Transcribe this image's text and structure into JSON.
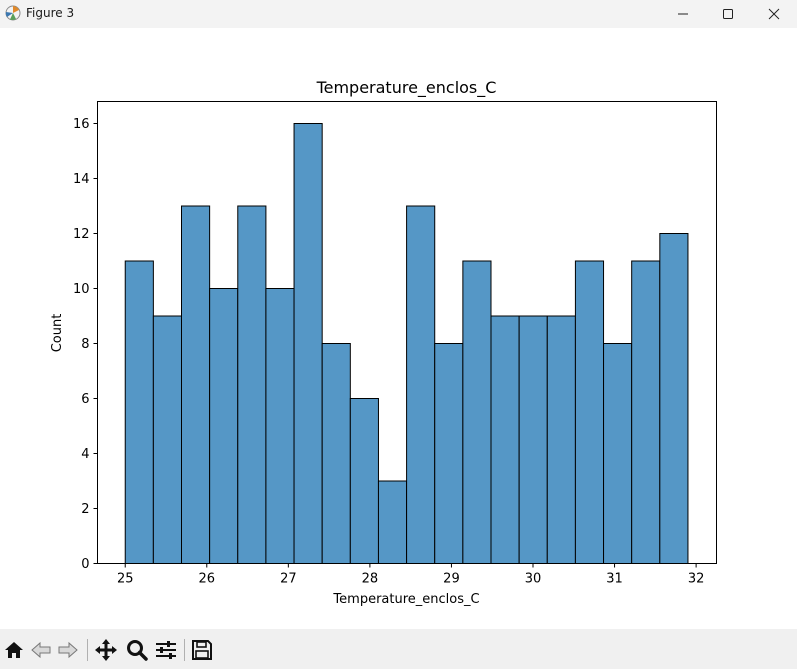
{
  "window": {
    "title": "Figure 3"
  },
  "icons": {
    "app": "matplotlib-figure-icon",
    "minimize": "minimize-icon",
    "maximize": "maximize-icon",
    "close": "close-icon",
    "home": "home-icon",
    "back": "back-arrow-icon",
    "forward": "forward-arrow-icon",
    "pan": "pan-move-icon",
    "zoom": "zoom-magnifier-icon",
    "configure": "configure-subplots-icon",
    "save": "save-floppy-icon"
  },
  "chart_data": {
    "type": "bar",
    "title": "Temperature_enclos_C",
    "xlabel": "Temperature_enclos_C",
    "ylabel": "Count",
    "bin_start": 25.0,
    "bin_width": 0.345,
    "values": [
      11,
      9,
      13,
      10,
      13,
      10,
      16,
      8,
      6,
      3,
      13,
      8,
      11,
      9,
      9,
      9,
      11,
      8,
      11,
      12
    ],
    "xlim": [
      24.66,
      32.25
    ],
    "ylim": [
      0,
      16.8
    ],
    "xticks": [
      "25",
      "26",
      "27",
      "28",
      "29",
      "30",
      "31",
      "32"
    ],
    "yticks": [
      "0",
      "2",
      "4",
      "6",
      "8",
      "10",
      "12",
      "14",
      "16"
    ],
    "bar_color": "#5597c6",
    "edge_color": "#000000",
    "grid": false,
    "legend": false
  }
}
